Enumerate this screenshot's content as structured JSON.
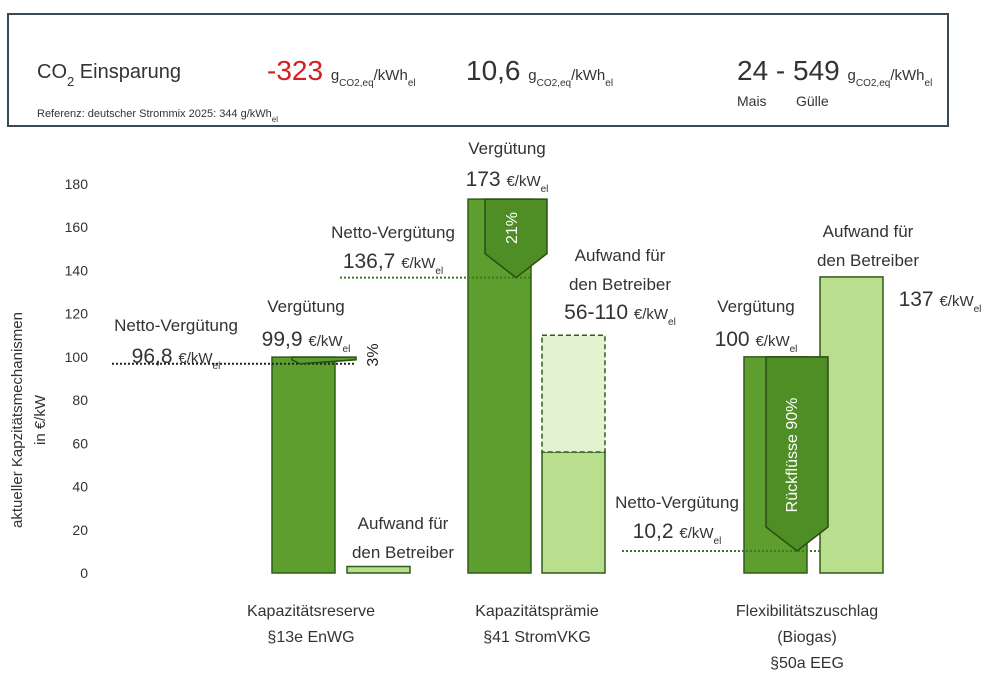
{
  "co2_panel": {
    "label": [
      "CO",
      "2",
      " Einsparung"
    ],
    "unit": [
      "g",
      "CO2,eq",
      "/kWh",
      "el"
    ],
    "values": [
      "-323",
      "10,6",
      "24 - 549"
    ],
    "sublabels": [
      "Mais",
      "Gülle"
    ],
    "reference": [
      "Referenz: deutscher Strommix 2025:   344 g/kWh",
      "el"
    ]
  },
  "chart_data": {
    "type": "bar",
    "y_label": [
      "aktueller Kapzitätsmechanismen",
      "in €/kW"
    ],
    "unit": [
      "€/kW",
      "el"
    ],
    "categories": [
      [
        "Kapazitätsreserve",
        "§13e EnWG"
      ],
      [
        "Kapazitätsprämie",
        "§41 StromVKG"
      ],
      [
        "Flexibilitätszuschlag",
        "(Biogas)",
        "§50a EEG"
      ]
    ],
    "ylim": [
      0,
      180
    ],
    "yticks": [
      0,
      20,
      40,
      60,
      80,
      100,
      120,
      140,
      160,
      180
    ],
    "grid": false,
    "series": [
      {
        "label": [
          "Vergütung"
        ],
        "color": "#5e9e2e",
        "values": [
          99.9,
          173,
          100
        ],
        "value_labels": [
          "99,9",
          "173",
          "100"
        ]
      },
      {
        "label": [
          "Aufwand für",
          "den Betreiber"
        ],
        "color": "#b8de8e",
        "values": [
          3,
          110,
          137
        ],
        "value_labels": [
          null,
          "56-110",
          "137"
        ],
        "range_start": [
          null,
          56,
          null
        ]
      },
      {
        "label": [
          "Netto-Vergütung"
        ],
        "values": [
          96.8,
          136.7,
          10.2
        ],
        "value_labels": [
          "96,8",
          "136,7",
          "10,2"
        ]
      }
    ],
    "reduction_labels": [
      "3%",
      "21%",
      "Rückflüsse 90%"
    ]
  }
}
